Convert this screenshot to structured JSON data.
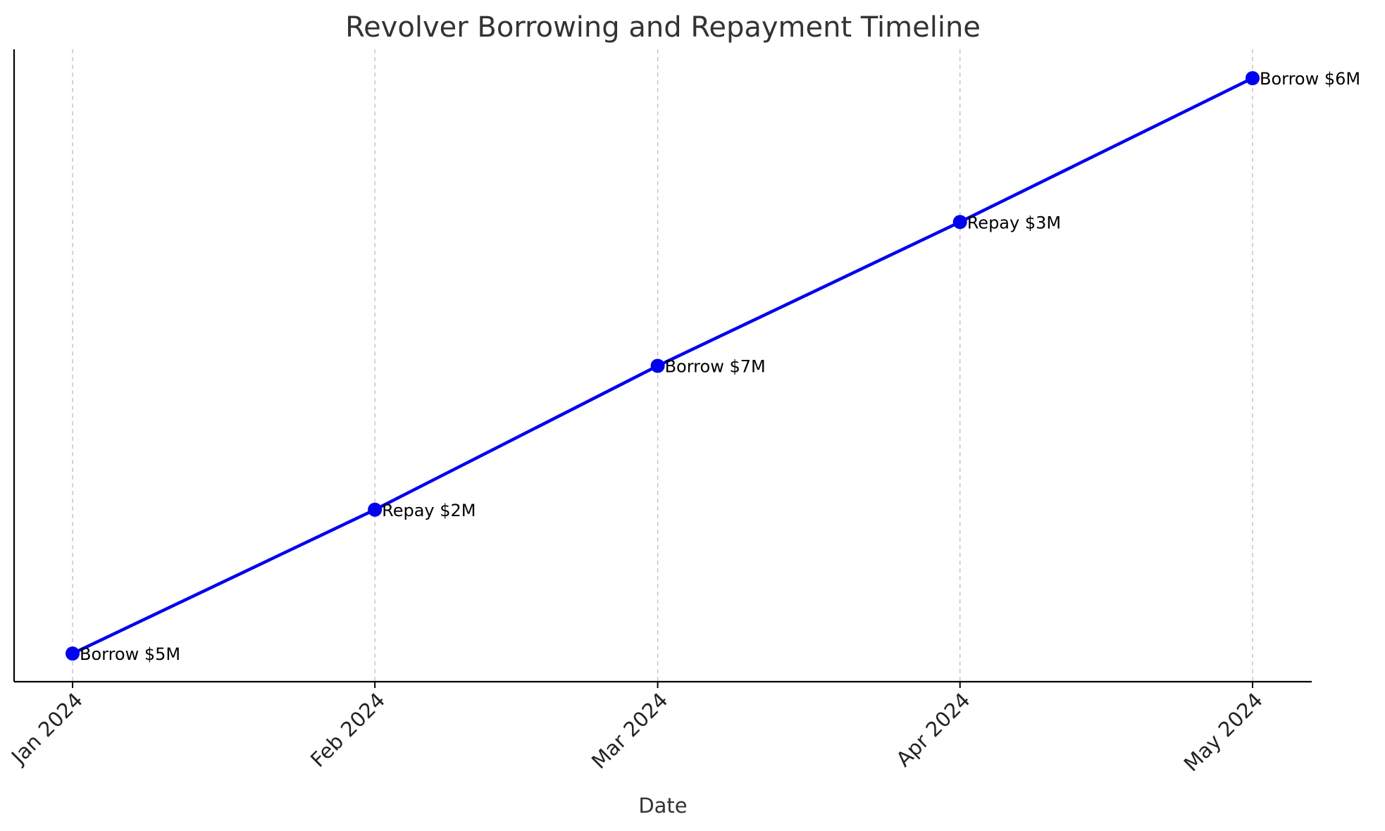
{
  "chart_data": {
    "type": "line",
    "title": "Revolver Borrowing and Repayment Timeline",
    "xlabel": "Date",
    "ylabel": "",
    "categories": [
      "Jan 2024",
      "Feb 2024",
      "Mar 2024",
      "Apr 2024",
      "May 2024"
    ],
    "x": [
      "2024-01-01",
      "2024-02-01",
      "2024-03-01",
      "2024-04-01",
      "2024-05-01"
    ],
    "labels": [
      "Borrow $5M",
      "Repay $2M",
      "Borrow $7M",
      "Repay $3M",
      "Borrow $6M"
    ],
    "y_ticks_shown": false,
    "grid": "vertical dashed",
    "series": [
      {
        "values": [
          1,
          2,
          3,
          4,
          5
        ],
        "color": "#0000ee",
        "marker": "circle"
      }
    ]
  }
}
